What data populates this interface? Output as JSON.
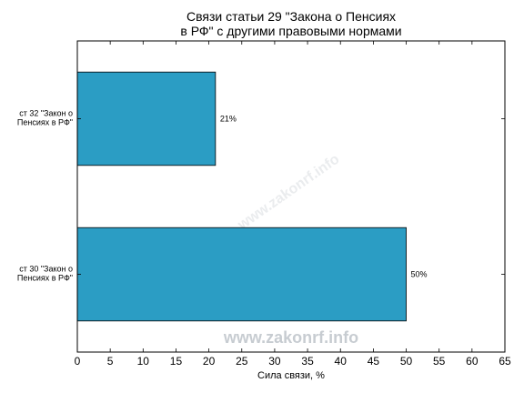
{
  "chart_data": {
    "type": "bar",
    "orientation": "horizontal",
    "title_lines": [
      "Связи статьи 29 \"Закона о Пенсиях",
      "в РФ\" с другими правовыми нормами"
    ],
    "categories": [
      [
        "ст 32 \"Закон о",
        "Пенсиях в РФ\""
      ],
      [
        "ст 30 \"Закон о",
        "Пенсиях в РФ\""
      ]
    ],
    "values": [
      21,
      50
    ],
    "value_labels": [
      "21%",
      "50%"
    ],
    "xlabel": "Сила связи, %",
    "xlim": [
      0,
      65
    ],
    "xticks": [
      0,
      5,
      10,
      15,
      20,
      25,
      30,
      35,
      40,
      45,
      50,
      55,
      60,
      65
    ],
    "bar_color": "#2b9dc4",
    "grid": false
  },
  "watermark": {
    "text": "www.zakonrf.info",
    "faint_text": "www.zakonrf.info"
  }
}
